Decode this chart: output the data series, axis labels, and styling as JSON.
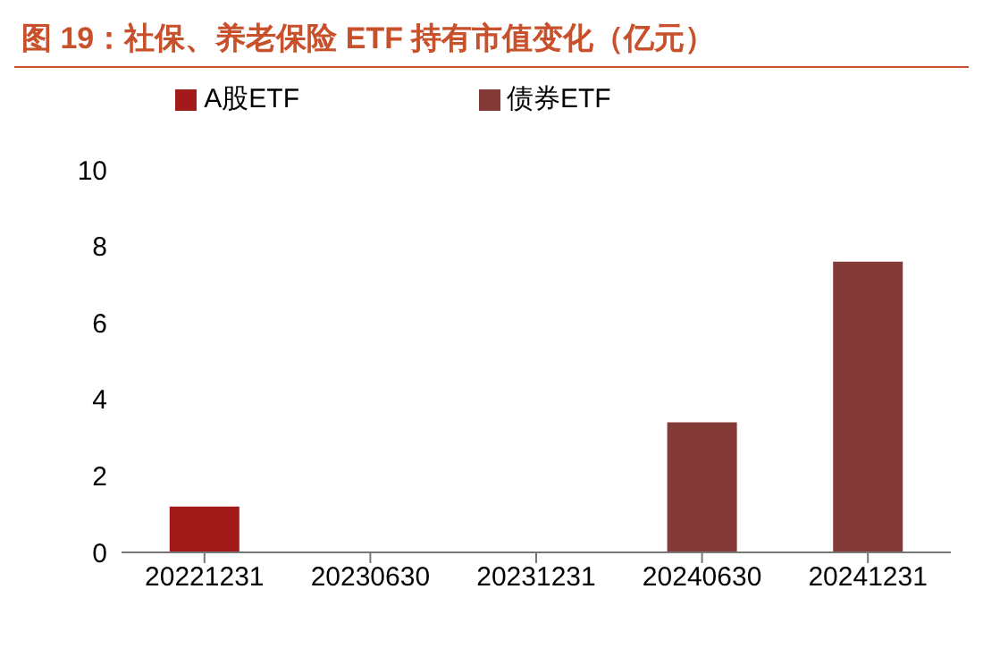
{
  "chart_data": {
    "type": "bar",
    "title": "图 19：社保、养老保险 ETF 持有市值变化（亿元）",
    "categories": [
      "20221231",
      "20230630",
      "20231231",
      "20240630",
      "20241231"
    ],
    "stacked": true,
    "series": [
      {
        "name": "A股ETF",
        "color": "#a31a1a",
        "values": [
          1.2,
          null,
          null,
          null,
          null
        ]
      },
      {
        "name": "债券ETF",
        "color": "#843a37",
        "values": [
          null,
          null,
          null,
          3.4,
          7.6
        ]
      }
    ],
    "ylim": [
      0,
      10
    ],
    "yticks": [
      0,
      2,
      4,
      6,
      8,
      10
    ],
    "grid": false,
    "legend": "top"
  }
}
